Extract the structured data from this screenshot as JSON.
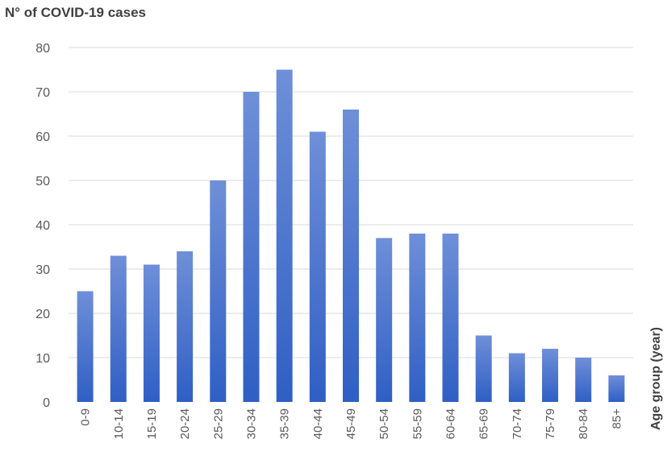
{
  "chart_data": {
    "type": "bar",
    "title": "N° of COVID-19 cases",
    "xlabel": "Age group (year)",
    "ylabel": "",
    "categories": [
      "0-9",
      "10-14",
      "15-19",
      "20-24",
      "25-29",
      "30-34",
      "35-39",
      "40-44",
      "45-49",
      "50-54",
      "55-59",
      "60-64",
      "65-69",
      "70-74",
      "75-79",
      "80-84",
      "85+"
    ],
    "values": [
      25,
      33,
      31,
      34,
      50,
      70,
      75,
      61,
      66,
      37,
      38,
      38,
      15,
      11,
      12,
      10,
      6
    ],
    "ylim": [
      0,
      80
    ],
    "yticks": [
      "0",
      "10",
      "20",
      "30",
      "40",
      "50",
      "60",
      "70",
      "80"
    ],
    "grid": true,
    "legend": "none",
    "colors": {
      "bar_top": "#6f8fd8",
      "bar_bottom": "#2f5fc4"
    }
  }
}
